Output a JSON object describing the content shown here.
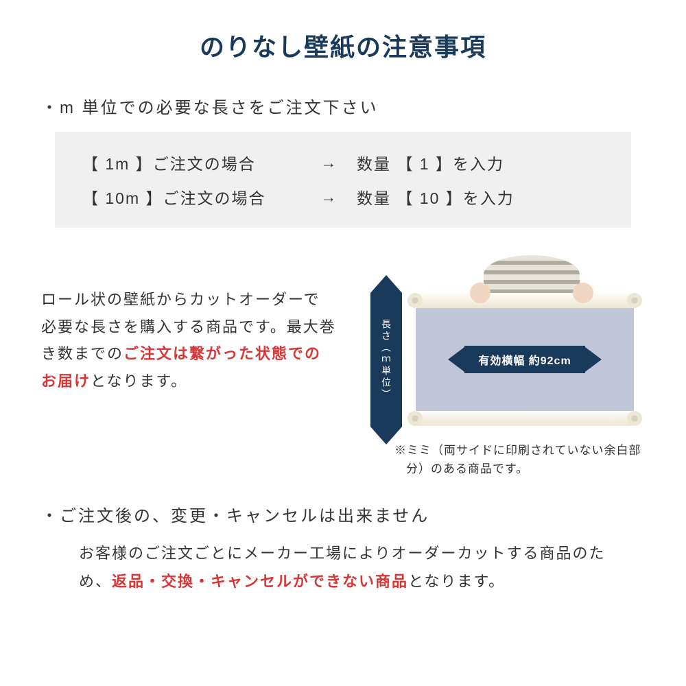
{
  "colors": {
    "title": "#1a3a5c",
    "arrow_bg": "#1a3a5c",
    "emphasis": "#d63838",
    "example_bg": "#f0f0f0",
    "sheet": "#c0c5d8",
    "text": "#333333"
  },
  "title": "のりなし壁紙の注意事項",
  "bullet1": "・m 単位での必要な長さをご注文下さい",
  "examples": [
    {
      "left": "【  1m  】ご注文の場合",
      "arrow": "→",
      "right": "数量 【  1  】を入力"
    },
    {
      "left": "【 10m 】ご注文の場合",
      "arrow": "→",
      "right": "数量 【  10  】を入力"
    }
  ],
  "mid_paragraph": {
    "line1": "ロール状の壁紙からカットオーダーで必要な長さを購入する商品です。最大巻き数までの",
    "emphasis": "ご注文は繋がった状態でのお届け",
    "line2": "となります。"
  },
  "diagram": {
    "length_label": "長さ（ｍ単位）",
    "width_label": "有効横幅 約92cm",
    "mimi_note": "※ミミ（両サイドに印刷されていない余白部分）のある商品です。"
  },
  "bullet2": "・ご注文後の、変更・キャンセルは出来ません",
  "cancel_paragraph": {
    "part1": "お客様のご注文ごとにメーカー工場によりオーダーカットする商品のため、",
    "emphasis": "返品・交換・キャンセルができない商品",
    "part2": "となります。"
  }
}
